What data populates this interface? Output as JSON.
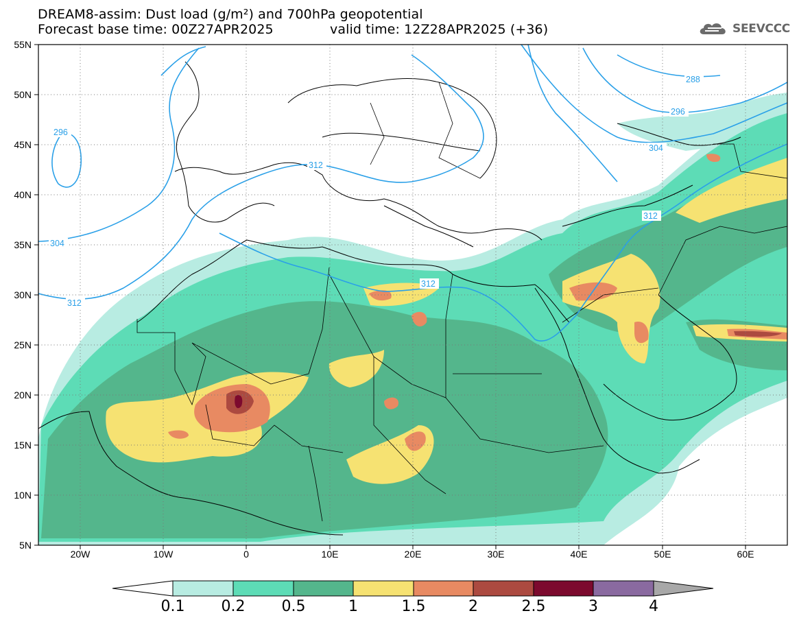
{
  "title": {
    "line1": "DREAM8-assim: Dust load (g/m²) and 700hPa geopotential",
    "base_time": "Forecast base time: 00Z27APR2025",
    "valid_time": "valid time: 12Z28APR2025 (+36)"
  },
  "logo": {
    "text": "SEEVCCC",
    "icon": "cloud-logo-icon"
  },
  "axes": {
    "lat_labels": [
      "55N",
      "50N",
      "45N",
      "40N",
      "35N",
      "30N",
      "25N",
      "20N",
      "15N",
      "10N",
      "5N"
    ],
    "lon_labels": [
      "20W",
      "10W",
      "0",
      "10E",
      "20E",
      "30E",
      "40E",
      "50E",
      "60E"
    ],
    "lat_range": [
      5,
      55
    ],
    "lon_range": [
      -25,
      65
    ]
  },
  "contours": {
    "labels": [
      "288",
      "296",
      "304",
      "312",
      "296",
      "304",
      "312",
      "312",
      "312"
    ],
    "color": "#2aa0e8"
  },
  "colorbar": {
    "labels": [
      "0.1",
      "0.2",
      "0.5",
      "1",
      "1.5",
      "2",
      "2.5",
      "3",
      "4"
    ],
    "colors": [
      "#ffffff",
      "#b8ece2",
      "#5ddcb6",
      "#54b68c",
      "#f6e272",
      "#e88a62",
      "#ac4a40",
      "#7c0a2e",
      "#8a6aa0",
      "#a8a8a8"
    ]
  }
}
